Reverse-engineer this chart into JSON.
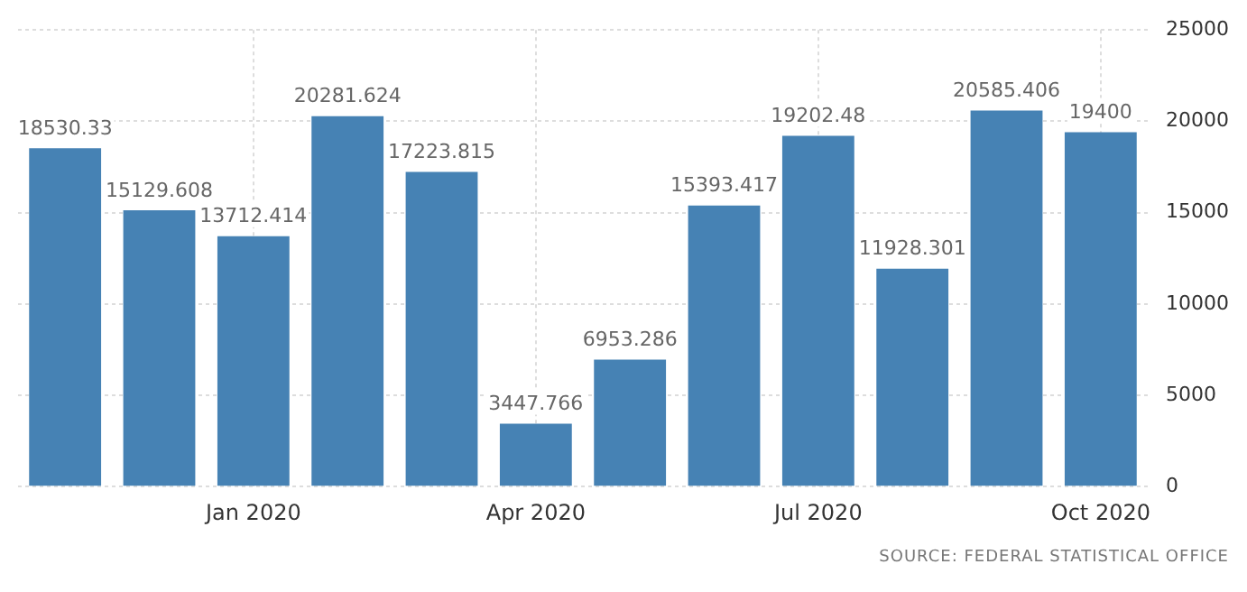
{
  "chart_data": {
    "type": "bar",
    "categories": [
      null,
      null,
      "Jan 2020",
      null,
      null,
      "Apr 2020",
      null,
      null,
      "Jul 2020",
      null,
      null,
      "Oct 2020"
    ],
    "values": [
      18530.33,
      15129.608,
      13712.414,
      20281.624,
      17223.815,
      3447.766,
      6953.286,
      15393.417,
      19202.48,
      11928.301,
      20585.406,
      19400
    ],
    "color": "#4682b4",
    "ylim": [
      0,
      25000
    ],
    "yticks": [
      0,
      5000,
      10000,
      15000,
      20000,
      25000
    ],
    "grid": true,
    "data_labels": true,
    "annotations": [
      "SOURCE: FEDERAL STATISTICAL OFFICE"
    ]
  }
}
